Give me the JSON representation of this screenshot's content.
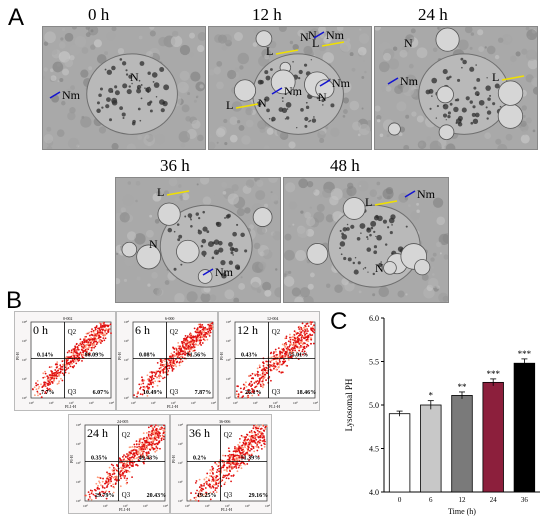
{
  "panels": {
    "a": "A",
    "b": "B",
    "c": "C"
  },
  "em": [
    {
      "time": "0 h",
      "labels": [
        "N",
        "Nm"
      ]
    },
    {
      "time": "12 h",
      "labels": [
        "N",
        "Nm",
        "L",
        "N",
        "L",
        "N",
        "Nm",
        "L",
        "N",
        "Nm"
      ]
    },
    {
      "time": "24 h",
      "labels": [
        "N",
        "Nm",
        "L"
      ]
    },
    {
      "time": "36 h",
      "labels": [
        "L",
        "N",
        "Nm"
      ]
    },
    {
      "time": "48 h",
      "labels": [
        "L",
        "Nm",
        "N"
      ]
    }
  ],
  "flow": [
    {
      "time": "0 h",
      "header": "0-002",
      "q2": "Q2",
      "q3": "Q3",
      "ul": "0.14%",
      "ur": "86.09%",
      "ll": "7.7%",
      "lr": "6.07%"
    },
    {
      "time": "6 h",
      "header": "6-000",
      "q2": "Q2",
      "q3": "Q3",
      "ul": "0.08%",
      "ur": "81.56%",
      "ll": "10.49%",
      "lr": "7.87%"
    },
    {
      "time": "12 h",
      "header": "12-004",
      "q2": "Q2",
      "q3": "Q3",
      "ul": "0.43%",
      "ur": "55.01%",
      "ll": "26.1%",
      "lr": "18.46%"
    },
    {
      "time": "24 h",
      "header": "24-005",
      "q2": "Q2",
      "q3": "Q3",
      "ul": "0.35%",
      "ur": "49.43%",
      "ll": "29.79%",
      "lr": "20.43%"
    },
    {
      "time": "36 h",
      "header": "36-006",
      "q2": "Q2",
      "q3": "Q3",
      "ul": "0.2%",
      "ur": "51.39%",
      "ll": "19.25%",
      "lr": "29.16%"
    }
  ],
  "flow_axes": {
    "x": "FL1-H",
    "y": "PI-H",
    "ticks": [
      "10°",
      "10¹",
      "10²",
      "10³",
      "10⁴"
    ]
  },
  "chart_data": {
    "type": "bar",
    "categories": [
      "0",
      "6",
      "12",
      "24",
      "36"
    ],
    "values": [
      4.9,
      5.0,
      5.11,
      5.26,
      5.48
    ],
    "errors": [
      0.03,
      0.05,
      0.04,
      0.04,
      0.05
    ],
    "significance": [
      "",
      "*",
      "**",
      "***",
      "***"
    ],
    "colors": [
      "#ffffff",
      "#c8c8c8",
      "#7a7a7a",
      "#8c1f3c",
      "#000000"
    ],
    "xlabel": "Time (h)",
    "ylabel": "Lysosomal PH",
    "ylim": [
      4.0,
      6.0
    ],
    "yticks": [
      "4.0",
      "4.5",
      "5.0",
      "5.5",
      "6.0"
    ],
    "grid": false
  }
}
